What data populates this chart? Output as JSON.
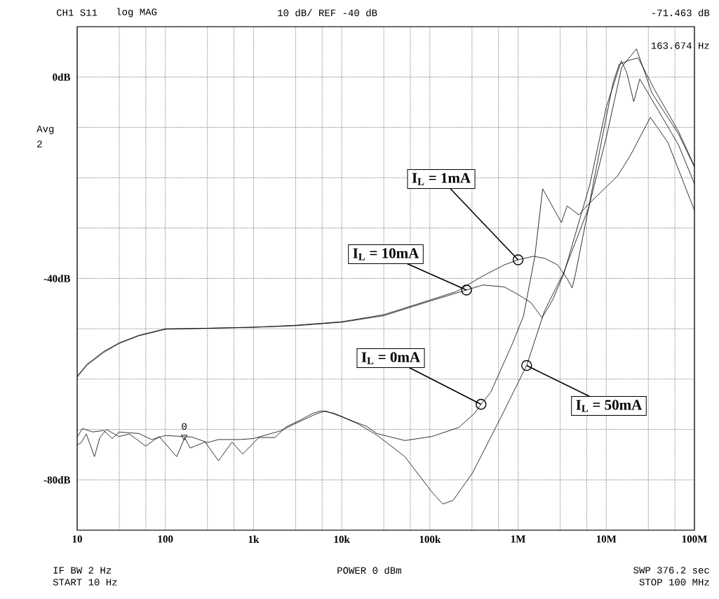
{
  "chart_data": {
    "type": "line",
    "log": "x",
    "grid": true,
    "marker": "none",
    "line_style": "solid",
    "xlim": [
      10,
      100000000
    ],
    "ylim": [
      -90,
      10
    ],
    "xticks": [
      {
        "value": 10,
        "label": "10"
      },
      {
        "value": 30,
        "label": null
      },
      {
        "value": 60,
        "label": null
      },
      {
        "value": 100,
        "label": "100"
      },
      {
        "value": 300,
        "label": null
      },
      {
        "value": 600,
        "label": null
      },
      {
        "value": 1000,
        "label": "1k"
      },
      {
        "value": 3000,
        "label": null
      },
      {
        "value": 6000,
        "label": null
      },
      {
        "value": 10000,
        "label": "10k"
      },
      {
        "value": 30000,
        "label": null
      },
      {
        "value": 60000,
        "label": null
      },
      {
        "value": 100000,
        "label": "100k"
      },
      {
        "value": 300000,
        "label": null
      },
      {
        "value": 600000,
        "label": null
      },
      {
        "value": 1000000,
        "label": "1M"
      },
      {
        "value": 3000000,
        "label": null
      },
      {
        "value": 6000000,
        "label": null
      },
      {
        "value": 10000000,
        "label": "10M"
      },
      {
        "value": 30000000,
        "label": null
      },
      {
        "value": 60000000,
        "label": null
      },
      {
        "value": 100000000,
        "label": "100M"
      }
    ],
    "yticks": [
      {
        "value": -90,
        "label": null
      },
      {
        "value": -80,
        "label": "-80dB"
      },
      {
        "value": -70,
        "label": null
      },
      {
        "value": -60,
        "label": null
      },
      {
        "value": -50,
        "label": null
      },
      {
        "value": -40,
        "label": "-40dB"
      },
      {
        "value": -30,
        "label": null
      },
      {
        "value": -20,
        "label": null
      },
      {
        "value": -10,
        "label": null
      },
      {
        "value": 0,
        "label": "0dB"
      },
      {
        "value": 10,
        "label": null
      }
    ],
    "series": [
      {
        "color": "#000000",
        "x": [
          10,
          13,
          20,
          30,
          50,
          100,
          300,
          1000,
          3000,
          10000,
          30000,
          100000,
          200000,
          400000,
          700000,
          1000000,
          1500000,
          2000000,
          2800000,
          3600000,
          4100000,
          4500000,
          6300000,
          9000000,
          12000000,
          14000000,
          18000000,
          23000000,
          35000000,
          66000000,
          100000000
        ],
        "values": [
          -59.4,
          -57,
          -54.5,
          -52.8,
          -51.3,
          -50.0,
          -49.9,
          -49.7,
          -49.3,
          -48.6,
          -47.2,
          -44.3,
          -42.6,
          -39.5,
          -37.3,
          -36.3,
          -35.6,
          -36,
          -37.3,
          -40,
          -41.9,
          -38.9,
          -26,
          -12,
          -1,
          2.5,
          3.3,
          3.8,
          -2.4,
          -10.8,
          -17.7
        ]
      },
      {
        "color": "#000000",
        "x": [
          10,
          13,
          20,
          30,
          50,
          100,
          300,
          1000,
          3000,
          10000,
          30000,
          100000,
          200000,
          260000,
          400000,
          700000,
          1000000,
          1400000,
          1870000,
          2460000,
          3300000,
          6500000,
          10000000,
          14800000,
          17000000,
          20500000,
          24000000,
          33000000,
          66000000,
          100000000
        ],
        "values": [
          -59.6,
          -57.2,
          -54.7,
          -52.9,
          -51.4,
          -50.1,
          -49.9,
          -49.7,
          -49.4,
          -48.7,
          -47.4,
          -44.5,
          -42.9,
          -42.3,
          -41.3,
          -41.7,
          -43.2,
          -44.8,
          -47.8,
          -44.3,
          -39.1,
          -21.4,
          -6,
          3.2,
          1,
          -4.9,
          -0.4,
          -4.5,
          -13.5,
          -21.2
        ]
      },
      {
        "color": "#000000",
        "x": [
          10,
          11,
          12.7,
          15.7,
          18.1,
          21.5,
          29.6,
          39.2,
          59.8,
          85,
          134.6,
          166,
          191,
          282,
          401,
          571,
          754,
          1148,
          1754,
          2335,
          3327,
          4710,
          5830,
          8320,
          13600,
          19300,
          25000,
          52000,
          105000,
          213000,
          320000,
          380000,
          490000,
          870000,
          1150000,
          1550000,
          1900000,
          3100000,
          3600000,
          4900000,
          6000000,
          13500000,
          19000000,
          31600000,
          50000000,
          100000000
        ],
        "values": [
          -73,
          -72.7,
          -70.9,
          -75.4,
          -71.6,
          -70,
          -71.4,
          -70.9,
          -73.3,
          -71.4,
          -75.4,
          -71.6,
          -73.7,
          -72.5,
          -76.2,
          -72.5,
          -74.9,
          -71.6,
          -71.6,
          -69.5,
          -68.2,
          -66.8,
          -66.3,
          -66.8,
          -68.4,
          -69.4,
          -70.8,
          -72.2,
          -71.4,
          -69.6,
          -66.8,
          -65,
          -62.6,
          -52.8,
          -47.5,
          -35.6,
          -22.2,
          -28.9,
          -25.6,
          -27.4,
          -25.6,
          -19.6,
          -15.4,
          -8,
          -13,
          -26.5
        ]
      },
      {
        "type": "scatter",
        "marker": "triangle",
        "color": "#000000",
        "x": [
          163.674
        ],
        "values": [
          -71.463
        ]
      },
      {
        "color": "#000000",
        "x": [
          10,
          11.5,
          15,
          20,
          25,
          30,
          50,
          70,
          100,
          200,
          300,
          400,
          700,
          1000,
          2000,
          3000,
          5000,
          6500,
          10000,
          15000,
          25000,
          52000,
          105000,
          140000,
          183000,
          305000,
          650000,
          1250000,
          2000000,
          3300000,
          6300000,
          10000000,
          15000000,
          22000000,
          33000000,
          66000000,
          100000000
        ],
        "values": [
          -71.5,
          -69.8,
          -70.5,
          -70.2,
          -71.8,
          -70.5,
          -70.8,
          -72,
          -71.2,
          -71.5,
          -72.6,
          -72,
          -72,
          -71.8,
          -70.3,
          -68.8,
          -67,
          -66.3,
          -67.5,
          -68.8,
          -71.1,
          -75.4,
          -82.4,
          -84.8,
          -84.1,
          -78.6,
          -67.3,
          -57.3,
          -46.4,
          -38.8,
          -26,
          -12,
          2,
          5.6,
          -3.2,
          -11.3,
          -17.9
        ]
      }
    ],
    "annotations": [
      "CH1 S11",
      "log MAG",
      "10 dB/ REF -40 dB",
      "-71.463 dB",
      "163.674 Hz",
      "Avg",
      "2",
      "IF BW 2 Hz",
      "START  10 Hz",
      "POWER  0 dBm",
      "SWP  376.2 sec",
      "STOP  100 MHz",
      {
        "text": "0",
        "x": 163.674,
        "y": -71.463
      },
      {
        "text": "I$_{L}$ = 1mA",
        "x": 1000000,
        "y": -36.3
      },
      {
        "text": "I$_{L}$ = 10mA",
        "x": 260000,
        "y": -42.3
      },
      {
        "text": "I$_{L}$ = 0mA",
        "x": 380000,
        "y": -65
      },
      {
        "text": "I$_{L}$ = 50mA",
        "x": 1250000,
        "y": -57.3
      }
    ]
  }
}
